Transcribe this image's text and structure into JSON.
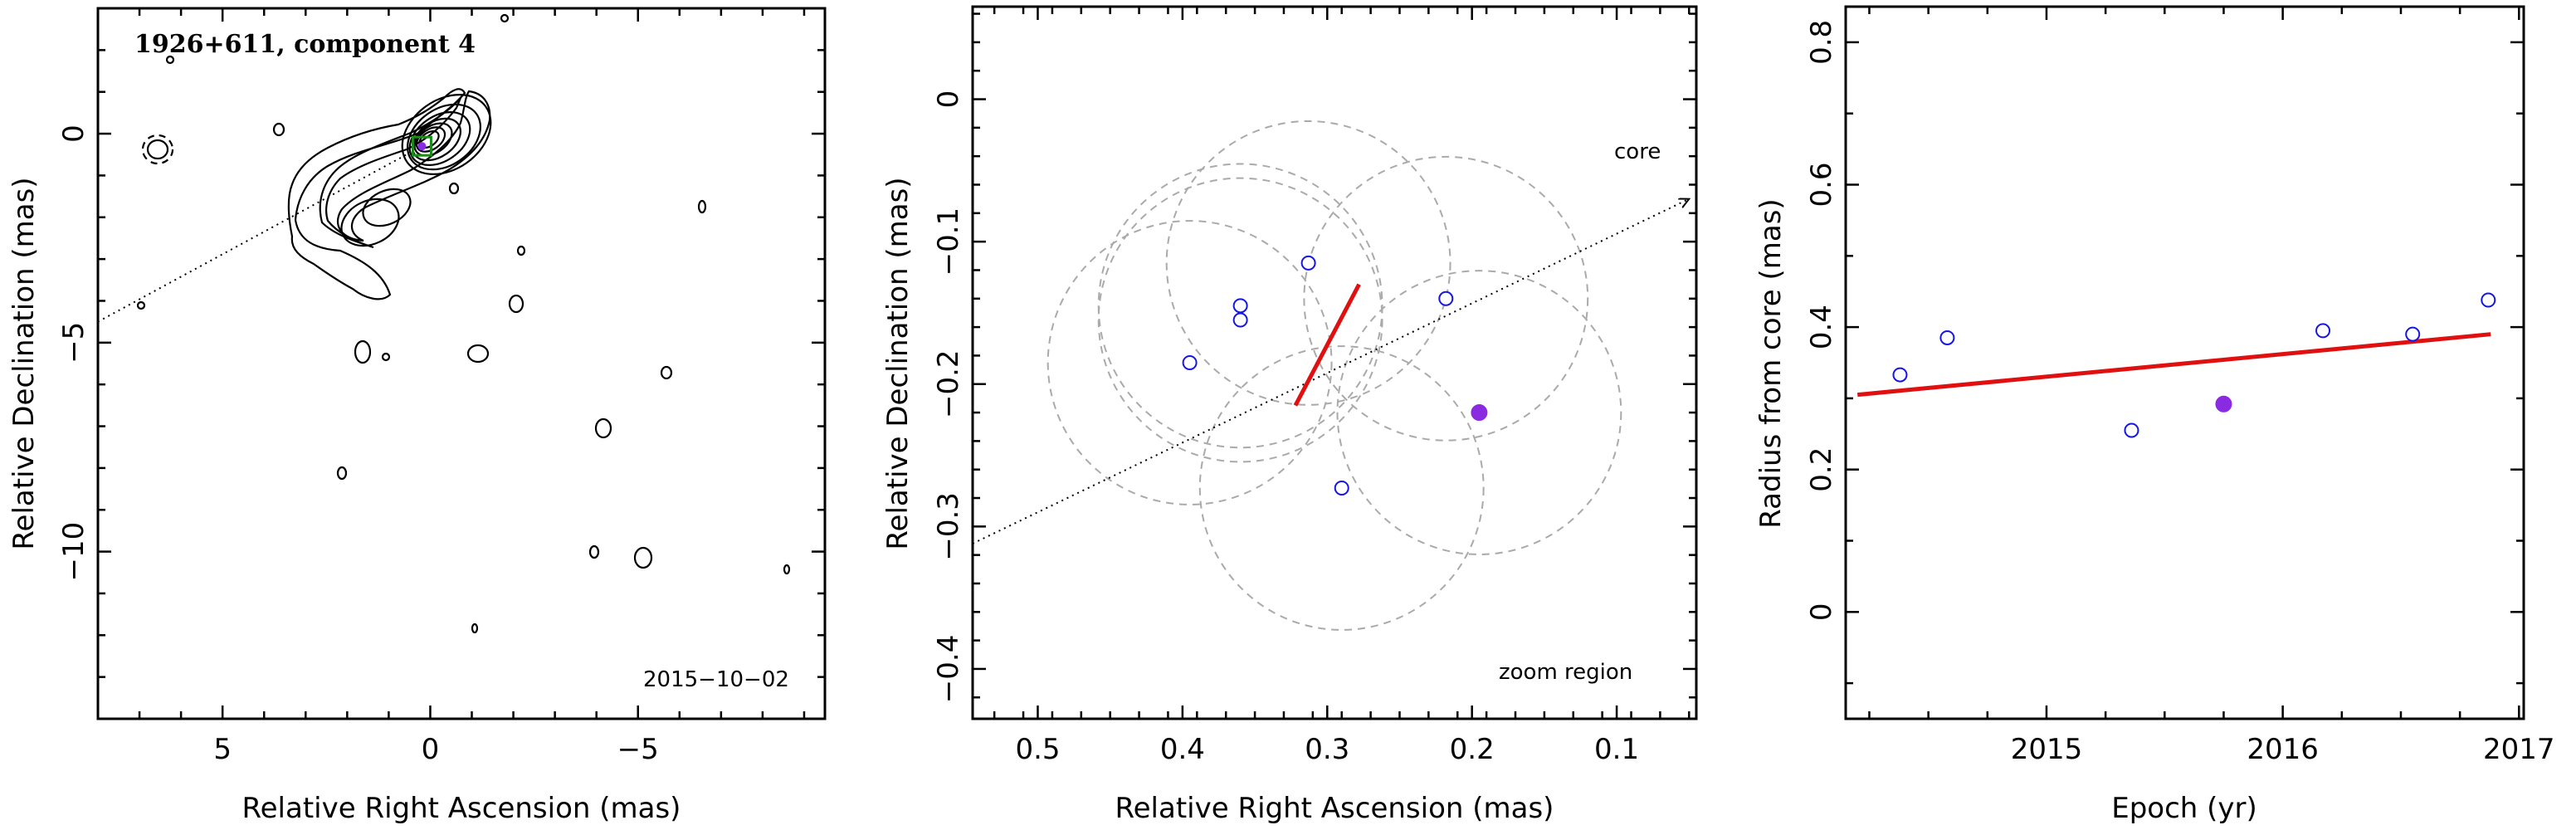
{
  "chart_data": [
    {
      "type": "scatter",
      "panel": "contour map",
      "title": "1926+611, component 4",
      "xlabel": "Relative Right Ascension (mas)",
      "ylabel": "Relative Declination (mas)",
      "xlim": [
        8.0,
        -9.5
      ],
      "ylim": [
        -14,
        3
      ],
      "xticks": [
        5,
        0,
        -5
      ],
      "yticks": [
        0,
        -5,
        -10
      ],
      "annotation": "2015−10−02",
      "series": [
        {
          "values": [
            [
              0.2,
              -0.3
            ]
          ]
        }
      ]
    },
    {
      "type": "scatter",
      "panel": "zoom region",
      "xlabel": "Relative Right Ascension (mas)",
      "ylabel": "Relative Declination (mas)",
      "xlim": [
        0.545,
        0.045
      ],
      "ylim": [
        -0.435,
        0.065
      ],
      "xticks": [
        0.5,
        0.4,
        0.3,
        0.2,
        0.1
      ],
      "yticks": [
        0,
        -0.1,
        -0.2,
        -0.3,
        -0.4
      ],
      "annotations": [
        "core",
        "zoom region"
      ],
      "direction_line": [
        [
          0.545,
          -0.312
        ],
        [
          0.05,
          -0.07
        ]
      ],
      "fit_segment": [
        [
          0.322,
          -0.215
        ],
        [
          0.278,
          -0.13
        ]
      ],
      "circle_radius": 0.098,
      "series": [
        {
          "values": [
            [
              0.395,
              -0.185
            ],
            [
              0.36,
              -0.155
            ],
            [
              0.36,
              -0.145
            ],
            [
              0.313,
              -0.115
            ],
            [
              0.29,
              -0.273
            ],
            [
              0.218,
              -0.14
            ]
          ]
        },
        {
          "values": [
            [
              0.195,
              -0.22
            ]
          ]
        }
      ]
    },
    {
      "type": "scatter",
      "panel": "radius vs epoch",
      "xlabel": "Epoch (yr)",
      "ylabel": "Radius from core (mas)",
      "xlim": [
        2014.15,
        2017.02
      ],
      "ylim": [
        -0.15,
        0.85
      ],
      "xticks": [
        2015,
        2016,
        2017
      ],
      "yticks": [
        0,
        0.2,
        0.4,
        0.6,
        0.8
      ],
      "fit_line": [
        [
          2014.2,
          0.305
        ],
        [
          2016.88,
          0.39
        ]
      ],
      "series": [
        {
          "x": [
            2014.38,
            2014.58,
            2015.36,
            2016.17,
            2016.55,
            2016.87
          ],
          "values": [
            0.333,
            0.385,
            0.255,
            0.395,
            0.39,
            0.438
          ]
        },
        {
          "x": [
            2015.75
          ],
          "values": [
            0.292
          ]
        }
      ]
    }
  ],
  "colors": {
    "points": "#1515e6",
    "highlight": "#8a2be2",
    "fit": "#e01010",
    "circles": "#aaaaaa",
    "marker": "#1a8c1a"
  }
}
